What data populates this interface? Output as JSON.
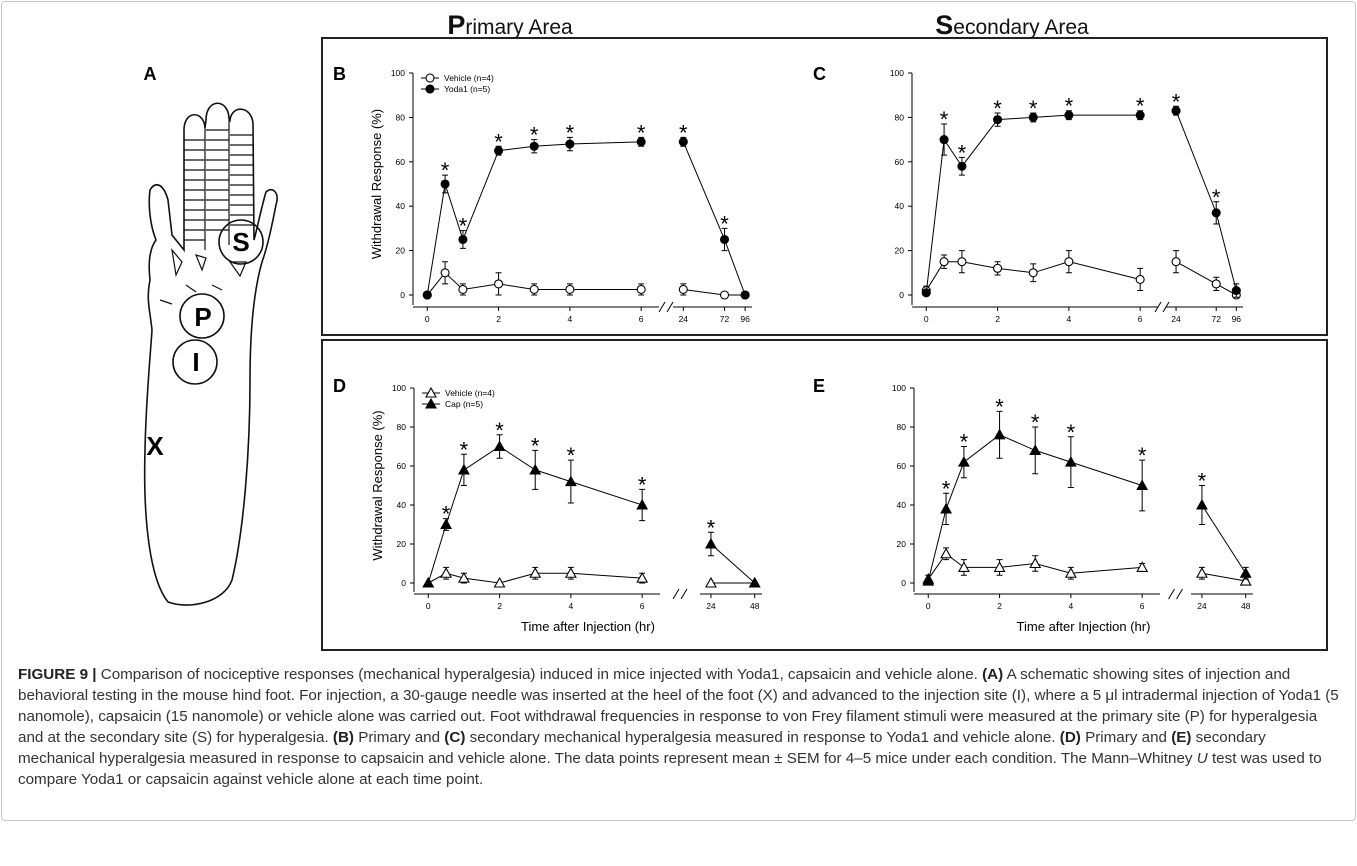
{
  "columns": [
    "Primary Area",
    "Secondary Area"
  ],
  "schematic": {
    "panel": "A",
    "labels": [
      "S",
      "P",
      "I",
      "X"
    ]
  },
  "chart_data": [
    {
      "type": "line",
      "panel": "B",
      "ylabel": "Withdrawal Response (%)",
      "legend": "upper left",
      "ylim": [
        0,
        100
      ],
      "yticks": [
        0,
        20,
        40,
        60,
        80,
        100
      ],
      "x_segments": [
        {
          "xlim": [
            -0.4,
            6.5
          ],
          "xticks": [
            0,
            2,
            4,
            6
          ]
        },
        {
          "xlim": [
            12,
            104
          ],
          "xticks": [
            24,
            72,
            96
          ]
        }
      ],
      "x": [
        0,
        0.5,
        1,
        2,
        3,
        4,
        6,
        24,
        72,
        96
      ],
      "series": [
        {
          "name": "Vehicle (n=4)",
          "color": "#000000",
          "marker": "open-circle",
          "values": [
            0,
            10,
            2.5,
            5,
            2.5,
            2.5,
            2.5,
            2.5,
            0,
            0
          ],
          "errors": [
            0,
            5,
            2.5,
            5,
            2.5,
            2.5,
            2.5,
            2.5,
            0,
            0
          ],
          "annotations": [
            null,
            null,
            null,
            null,
            null,
            null,
            null,
            null,
            null,
            null
          ]
        },
        {
          "name": "Yoda1 (n=5)",
          "color": "#000000",
          "marker": "filled-circle",
          "values": [
            0,
            50,
            25,
            65,
            67,
            68,
            69,
            69,
            25,
            0
          ],
          "errors": [
            0,
            4,
            4,
            2,
            3,
            3,
            2,
            2,
            5,
            0
          ],
          "annotations": [
            null,
            "*",
            "*",
            "*",
            "*",
            "*",
            "*",
            "*",
            "*",
            null
          ]
        }
      ]
    },
    {
      "type": "line",
      "panel": "C",
      "ylim": [
        0,
        100
      ],
      "yticks": [
        0,
        20,
        40,
        60,
        80,
        100
      ],
      "x_segments": [
        {
          "xlim": [
            -0.4,
            6.5
          ],
          "xticks": [
            0,
            2,
            4,
            6
          ]
        },
        {
          "xlim": [
            12,
            104
          ],
          "xticks": [
            24,
            72,
            96
          ]
        }
      ],
      "x": [
        0,
        0.5,
        1,
        2,
        3,
        4,
        6,
        24,
        72,
        96
      ],
      "series": [
        {
          "color": "#000000",
          "marker": "open-circle",
          "values": [
            2,
            15,
            15,
            12,
            10,
            15,
            7,
            15,
            5,
            0
          ],
          "errors": [
            2,
            3,
            5,
            3,
            4,
            5,
            5,
            5,
            3,
            1
          ],
          "annotations": [
            null,
            null,
            null,
            null,
            null,
            null,
            null,
            null,
            null,
            null
          ]
        },
        {
          "color": "#000000",
          "marker": "filled-circle",
          "values": [
            1,
            70,
            58,
            79,
            80,
            81,
            81,
            83,
            37,
            2
          ],
          "errors": [
            1,
            7,
            4,
            3,
            2,
            2,
            2,
            2,
            5,
            3
          ],
          "annotations": [
            null,
            "*",
            "*",
            "*",
            "*",
            "*",
            "*",
            "*",
            "*",
            null
          ]
        }
      ]
    },
    {
      "type": "line",
      "panel": "D",
      "ylabel": "Withdrawal Response (%)",
      "xlabel": "Time after Injection (hr)",
      "legend": "upper left",
      "ylim": [
        0,
        100
      ],
      "yticks": [
        0,
        20,
        40,
        60,
        80,
        100
      ],
      "x_segments": [
        {
          "xlim": [
            -0.4,
            6.5
          ],
          "xticks": [
            0,
            2,
            4,
            6
          ]
        },
        {
          "xlim": [
            18,
            52
          ],
          "xticks": [
            24,
            48
          ]
        }
      ],
      "x": [
        0,
        0.5,
        1,
        2,
        3,
        4,
        6,
        24,
        48
      ],
      "series": [
        {
          "name": "Vehicle (n=4)",
          "color": "#000000",
          "marker": "open-triangle",
          "values": [
            0,
            5,
            2.5,
            0,
            5,
            5,
            2.5,
            0,
            0
          ],
          "errors": [
            0,
            3,
            2.5,
            0,
            3,
            3,
            2.5,
            0,
            0
          ],
          "annotations": [
            null,
            null,
            null,
            null,
            null,
            null,
            null,
            null,
            null
          ]
        },
        {
          "name": "Cap (n=5)",
          "color": "#000000",
          "marker": "filled-triangle",
          "values": [
            0,
            30,
            58,
            70,
            58,
            52,
            40,
            20,
            0
          ],
          "errors": [
            0,
            3,
            8,
            6,
            10,
            11,
            8,
            6,
            0
          ],
          "annotations": [
            null,
            "*",
            "*",
            "*",
            "*",
            "*",
            "*",
            "*",
            null
          ]
        }
      ]
    },
    {
      "type": "line",
      "panel": "E",
      "xlabel": "Time after Injection (hr)",
      "ylim": [
        0,
        100
      ],
      "yticks": [
        0,
        20,
        40,
        60,
        80,
        100
      ],
      "x_segments": [
        {
          "xlim": [
            -0.4,
            6.5
          ],
          "xticks": [
            0,
            2,
            4,
            6
          ]
        },
        {
          "xlim": [
            18,
            52
          ],
          "xticks": [
            24,
            48
          ]
        }
      ],
      "x": [
        0,
        0.5,
        1,
        2,
        3,
        4,
        6,
        24,
        48
      ],
      "series": [
        {
          "color": "#000000",
          "marker": "open-triangle",
          "values": [
            2,
            15,
            8,
            8,
            10,
            5,
            8,
            5,
            1
          ],
          "errors": [
            2,
            3,
            4,
            4,
            4,
            3,
            2,
            3,
            2
          ],
          "annotations": [
            null,
            null,
            null,
            null,
            null,
            null,
            null,
            null,
            null
          ]
        },
        {
          "color": "#000000",
          "marker": "filled-triangle",
          "values": [
            1,
            38,
            62,
            76,
            68,
            62,
            50,
            40,
            5
          ],
          "errors": [
            1,
            8,
            8,
            12,
            12,
            13,
            13,
            10,
            3
          ],
          "annotations": [
            null,
            "*",
            "*",
            "*",
            "*",
            "*",
            "*",
            "*",
            null
          ]
        }
      ]
    }
  ],
  "caption": [
    {
      "text": "FIGURE 9 |",
      "bold": true
    },
    {
      "text": " Comparison of nociceptive responses (mechanical hyperalgesia) induced in mice injected with Yoda1, capsaicin and vehicle alone. "
    },
    {
      "text": "(A)",
      "bold": true
    },
    {
      "text": " A schematic showing sites of injection and behavioral testing in the mouse hind foot. For injection, a 30-gauge needle was inserted at the heel of the foot (X) and advanced to the injection site (I), where a 5 μl intradermal injection of Yoda1 (5 nanomole), capsaicin (15 nanomole) or vehicle alone was carried out. Foot withdrawal frequencies in response to von Frey filament stimuli were measured at the primary site (P) for hyperalgesia and at the secondary site (S) for hyperalgesia. "
    },
    {
      "text": "(B)",
      "bold": true
    },
    {
      "text": " Primary and "
    },
    {
      "text": "(C)",
      "bold": true
    },
    {
      "text": " secondary mechanical hyperalgesia measured in response to Yoda1 and vehicle alone. "
    },
    {
      "text": "(D)",
      "bold": true
    },
    {
      "text": " Primary and "
    },
    {
      "text": "(E)",
      "bold": true
    },
    {
      "text": " secondary mechanical hyperalgesia measured in response to capsaicin and vehicle alone. The data points represent mean ± SEM for 4–5 mice under each condition. The Mann–Whitney "
    },
    {
      "text": "U",
      "italic": true
    },
    {
      "text": " test was used to compare Yoda1 or capsaicin against vehicle alone at each time point."
    }
  ]
}
